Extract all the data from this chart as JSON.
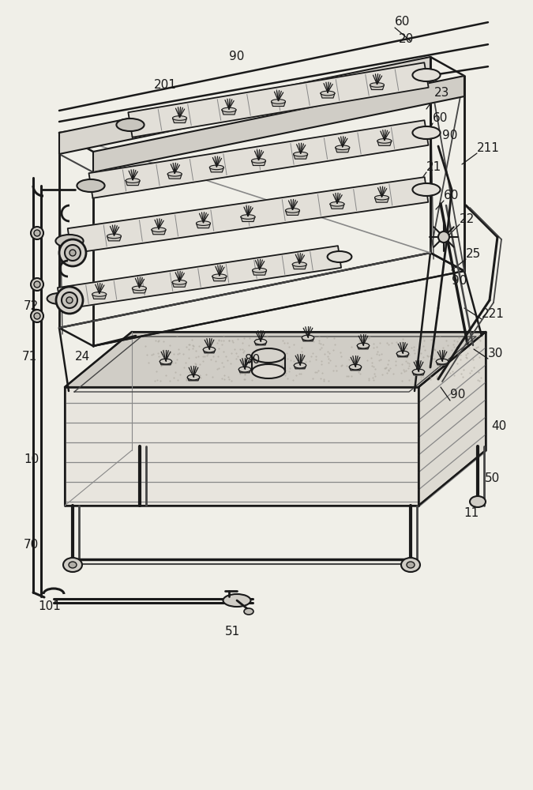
{
  "bg_color": "#f0efe8",
  "lc": "#1a1a1a",
  "lc2": "#444444",
  "lc3": "#888888",
  "fill_box_front": "#e8e5de",
  "fill_box_right": "#dddad2",
  "fill_box_top": "#d0cdc6",
  "fill_tray": "#ccc8be",
  "fill_tube": "#e2dfd8",
  "fill_tube_dark": "#c8c5be",
  "fill_soil": "#bdb8ae"
}
